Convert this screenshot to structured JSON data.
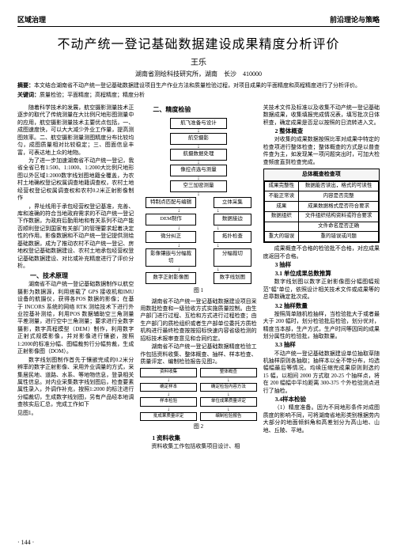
{
  "header": {
    "left": "区域治理",
    "right": "前沿理论与策略"
  },
  "title": "不动产统一登记基础数据建设成果精度分析评价",
  "author": "王乐",
  "affiliation": "湖南省测绘科技研究所，湖南　长沙　410000",
  "abstract_label": "摘要：",
  "abstract": "本文结合湖南省不动产统一登记基础数据建设项目生产作业方法和质量检验过程，对项目成果的平面精度和高程精度进行了分析评价。",
  "keywords_label": "关键词：",
  "keywords": "质量检验；平面精度；高程精度；精度分析",
  "col1": {
    "p1": "随着科学技术的发展，航空摄影测量技术正逐步的取代了传统测量在大比例尺地形图测量中的应用，航空摄影测量技术主要优点包括，一、成图速度快，可以大大减少外业工作量，提高测图效率。二、航空摄影测量测图精度分布比较均匀，成图质量相对比较稳定；三、图面信息丰富，可表达地上众的地物。",
    "p2": "为了进一步加速湖南省不动产统一登记，我省全省已有1:500、1:1000、1:2000大比例尺地形图以外区域1:2000数字线划图地籍全覆盖，为农村土地确权登记权属调查地籍调查权，农村土地经营权登记权属调查权和农村0.2米正射影像制作",
    "p3": "，界址线用于承包经营权登记基准，充善、库和准确的符合当地政府需求的不动产统一登记下作数据，为政府后勤用地和有关系列不动产能否顺利登记到国家有关部门的管理要求起着决定性的作用。影像数据和不动产统一登记提供测绘基础数据，成为了推动农村不动产统一登记、房地权登记基础数据建设、农村土地承包经营权登记基础数据建设、对比或补充精度进行了评价分析。",
    "s1_title": "一、技术原理",
    "p4": "湖南省不动产统一登记基础数据制作以航空摄影为数据源，利用搭载了 GPS 接收机和IMU设备的航摄仪，获得各POS 数据的影像；在基于 INCORS 系统的网络 RTK 测绘技术下进行外业控基补测绘，利用POS 数据辅助空三角测量平差测量，进行空中三角测量；要求进行全数字摄影，数字高程模型（DEM）制作，利用数字正射式规模影像，并对影像进行镶嵌，按照1:2000的标准分幅、图幅裁剪行分幅剪裁，生成正射影像图（DOM）。",
    "p5": "数字线划图制作首先于镶嵌完成的0.2米分辨率的数字正射影像、采用外业调量的方式，采集居民地、道路、水系、等地物信息，登录相关属性信息。对内业采集数字线划图后，检查要素属性录入，外调作补充，按照1:2000 的标注进行分幅裁切，生成数字线划图，另有产品经本地调查核实后汇总，完成工作如下",
    "p6_noindent": "见图1。"
  },
  "col2": {
    "s2_title": "二、精度检验",
    "flow": {
      "b1": "航飞准备与设计",
      "b2": "航空摄影",
      "b3": "航摄数据处理",
      "b4": "像控点选与测量",
      "b5": "空三加密测量",
      "b6a": "特制点匹配与编辑",
      "b6b": "立体采集",
      "b7a": "DEM制作",
      "b7b": "数据接边",
      "b8a": "微分纠正",
      "b8b": "拓扑检查",
      "b9a": "影像镶嵌与分幅裁切",
      "b9b": "分幅裁切",
      "b10a": "数字正射影像图",
      "b10b": "数字线划图"
    },
    "fig1": "图 1",
    "s21_title": "1 资料收集",
    "p1": "资料收集工作包括收集项目设计、相",
    "p2": "湖南省不动产统一登记基础数据建设项目采用数批检查和一级验收方式实施质量控制。由生产部门进行过程、互检和方式进行过程检查；由生产部门的质检组织或者生产部单位委托方质检机构进行最终检查按按招标快速内容省级检测的招标技术报审查意见和合同约定。",
    "p3": "湖南省不动产统一登记基础数据精度检验工作包括资料收集、整体概查、抽样、样本检查、质量评定、编制检验报告见图2。",
    "diag2": {
      "r1a": "资料收集",
      "r1b": "整体概查",
      "r2a": "确定样本",
      "r2b": "确定检验内容方法",
      "r3a": "样本检验",
      "r3b": "单位成果质量评定",
      "r4a": "批成果质量评定",
      "r4b": "编制检验报告"
    },
    "fig2": "图 2"
  },
  "col3": {
    "p1_noindent": "关技术文件及标准以及收集不动产统一登记基础数据成果，收集填报完成情况表，填写批次日体积查，确定成果是否足以按照的日流转进入文。",
    "s22_title": "2 整体概查",
    "p2": "对收集的成果数据按照比率对成果中特定的检查项进行整体检查；整体概查的方式是以普查件查为主，如发现某一项问题突出时，可加大检查频度直到检查完成。",
    "tbl_title": "总体概查检查项",
    "tbl": [
      [
        "成果完整性",
        "数据能否读出，格式的可读性"
      ],
      [
        "不能正常读",
        "内容是否完整"
      ],
      [
        "成果",
        "成果数据格式是否符合要求"
      ],
      [
        "数据组织",
        "文件组织结构资料或符合要求"
      ],
      [
        "",
        "文件命名是否正确"
      ],
      [
        "重大的错误",
        "重的错误或问题"
      ]
    ],
    "p3": "成果概查不合格的检验批不合格，对应成果底返回不合格。",
    "s23_title": "3 抽样",
    "s231_title": "3.1 单位成果总数推算",
    "p4": "数字线划图以数字正射影像图分幅图幅规范\"幅\"单位，依照设计相关技术文件或成果等的总章数确定批次成。",
    "s232_title": "3.2 抽样数量",
    "p5": "按照简单随机检抽样，当检验批大于或者最大于 200 幅时，划分检验批后检验，划分优对，精度当本部，生产方式，生产时间等因同的成果划分属性的检验批，抽取数量。",
    "s233_title": "3.3 抽样",
    "p6": "不动产统一登记基础数据建设单位抽取草随机抽样原则各抽取；抽样本以全不带分布，均选幅幅最后等情况。均续压缩完成果原则则选约 15 幅，以相间 2000 方式取 20-25 个抽样点，将在 200 幅幅中平均距离 300-375 个外检验测点进行了抽检。",
    "s24_title": "3.4样本检验",
    "p7": "（1）精度准备。因为不同地形条件对成图质度的影响不同，可将湖南省地形类别根据劳内大部分的地面倾斜角和高差划分为高山地、山地、丘陵、平地。"
  },
  "page_num": "· 144 ·"
}
